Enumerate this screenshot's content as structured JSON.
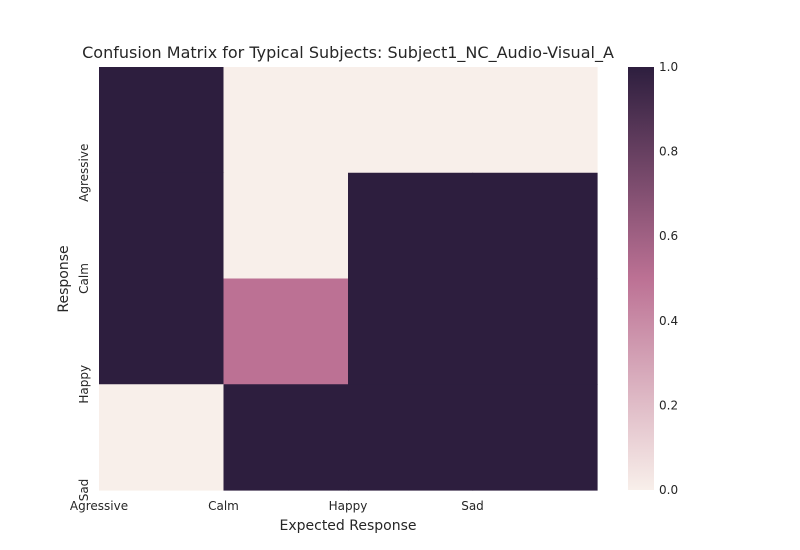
{
  "chart_data": {
    "type": "heatmap",
    "title": "Confusion Matrix for Typical Subjects: Subject1_NC_Audio-Visual_A",
    "xlabel": "Expected Response",
    "ylabel": "Response",
    "x_categories": [
      "Agressive",
      "Calm",
      "Happy",
      "Sad"
    ],
    "y_categories": [
      "Agressive",
      "Calm",
      "Happy",
      "Sad"
    ],
    "values": [
      [
        1.0,
        0.0,
        0.0,
        0.0
      ],
      [
        1.0,
        0.0,
        1.0,
        1.0
      ],
      [
        1.0,
        0.5,
        1.0,
        1.0
      ],
      [
        0.0,
        1.0,
        1.0,
        1.0
      ]
    ],
    "colorbar": {
      "range": [
        0.0,
        1.0
      ],
      "ticks": [
        "0.0",
        "0.2",
        "0.4",
        "0.6",
        "0.8",
        "1.0"
      ],
      "low_color": "#f8efea",
      "mid_color": "#bc7194",
      "high_color": "#2d1e3e"
    },
    "grid": false,
    "legend": "colorbar-right"
  }
}
